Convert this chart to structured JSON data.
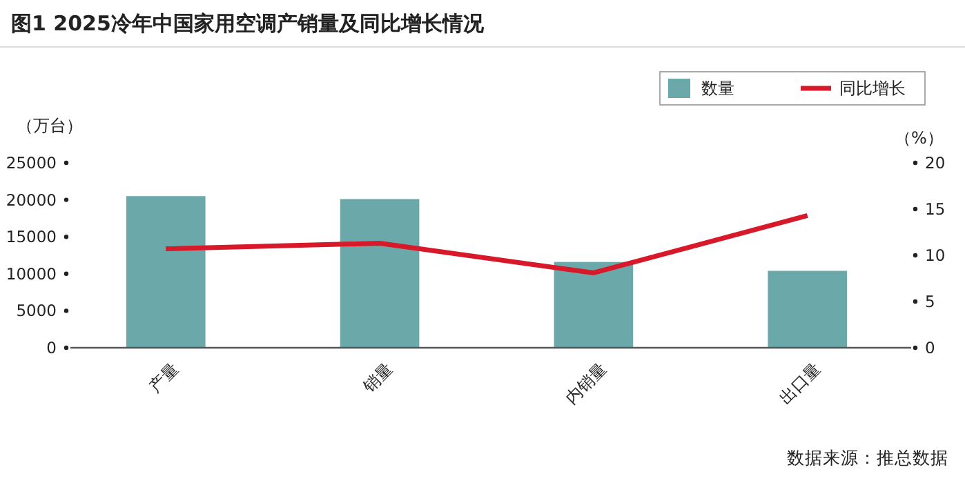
{
  "chart_data": {
    "type": "bar",
    "title": "图1  2025冷年中国家用空调产销量及同比增长情况",
    "ylabel": "（万台）",
    "y2label": "（%）",
    "categories": [
      "产量",
      "销量",
      "内销量",
      "出口量"
    ],
    "series": [
      {
        "name": "数量",
        "color": "#6aa8a9",
        "values": [
          20500,
          20100,
          11600,
          10400
        ]
      },
      {
        "name": "同比增长",
        "type": "line",
        "axis": "y2",
        "color": "#d7192a",
        "values": [
          10.7,
          11.3,
          8.1,
          14.3
        ]
      }
    ],
    "ylim": [
      0,
      25000
    ],
    "yticks": [
      0,
      5000,
      10000,
      15000,
      20000,
      25000
    ],
    "y2lim": [
      0,
      20
    ],
    "y2ticks": [
      0,
      5,
      10,
      15,
      20
    ],
    "legend": "top right",
    "grid": false,
    "marker": "none",
    "annotations": [
      "数据来源：推总数据"
    ]
  }
}
